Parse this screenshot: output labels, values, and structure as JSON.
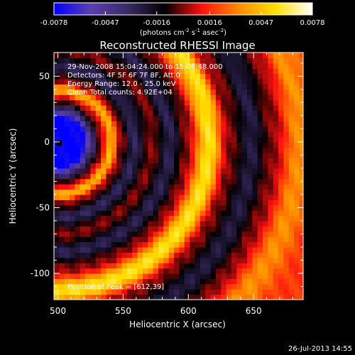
{
  "chart_data": {
    "type": "heatmap",
    "title": "Reconstructed RHESSI Image",
    "xlabel": "Heliocentric X (arcsec)",
    "ylabel": "Heliocentric Y (arcsec)",
    "xlim": [
      497,
      688
    ],
    "ylim": [
      -120,
      68
    ],
    "x_ticks": [
      500,
      550,
      600,
      650
    ],
    "y_ticks": [
      50,
      0,
      -50,
      -100
    ],
    "colorbar": {
      "min": -0.0078,
      "max": 0.0078,
      "ticks": [
        "-0.0078",
        "-0.0047",
        "-0.0016",
        "0.0016",
        "0.0047",
        "0.0078"
      ],
      "units_prefix": "(photons cm",
      "units_sup1": "-2",
      "units_mid": " s",
      "units_sup2": "-1",
      "units_mid2": " asec",
      "units_sup3": "-2",
      "units_suffix": ")",
      "colormap": [
        "#0000ff",
        "#5b3fb0",
        "#3a2a66",
        "#000000",
        "#ff1010",
        "#ff8a00",
        "#ffe000",
        "#ffffff"
      ]
    },
    "annotations": [
      "29-Nov-2008 15:04:24.000 to 15:06:48.000",
      "Detectors: 4F 5F 6F 7F 8F, Att 0",
      "Energy Range: 12.0 - 25.0 keV",
      "Clean     Total counts: 4.92E+04"
    ],
    "peak_label": "Position of Peak = [612,39]",
    "peak_position": [
      612,
      39
    ],
    "source_center": [
      500,
      0
    ],
    "rings": [
      {
        "radius": 18,
        "value": -0.0078
      },
      {
        "radius": 27,
        "value": -0.003
      },
      {
        "radius": 32,
        "value": 0.0
      },
      {
        "radius": 40,
        "value": 0.0045
      },
      {
        "radius": 47,
        "value": 0.0
      },
      {
        "radius": 57,
        "value": -0.003
      },
      {
        "radius": 70,
        "value": 0.0
      },
      {
        "radius": 84,
        "value": -0.0028
      },
      {
        "radius": 96,
        "value": 0.0
      },
      {
        "radius": 113,
        "value": 0.0058
      },
      {
        "radius": 128,
        "value": 0.0
      },
      {
        "radius": 145,
        "value": -0.0025
      },
      {
        "radius": 160,
        "value": 0.0
      },
      {
        "radius": 180,
        "value": 0.0035
      },
      {
        "radius": 200,
        "value": 0.0018
      }
    ]
  },
  "footer": {
    "date": "26-Jul-2013 14:55"
  }
}
